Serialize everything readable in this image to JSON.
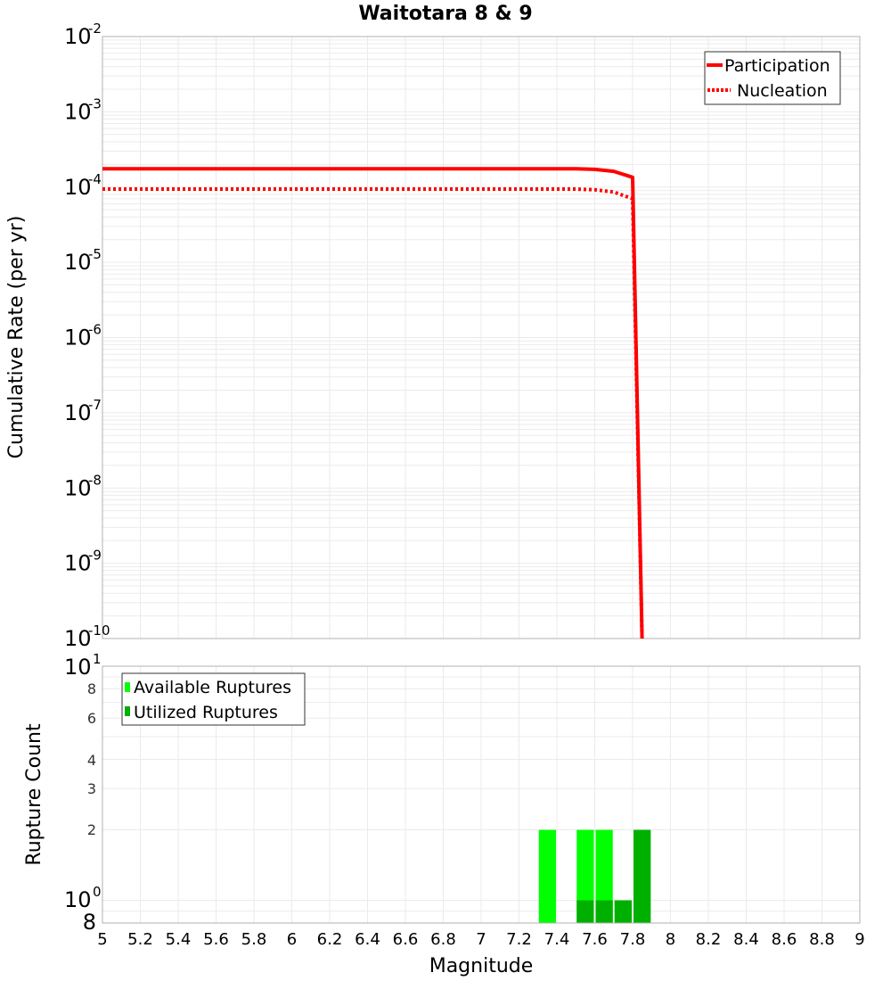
{
  "chart_data": [
    {
      "type": "line",
      "title": "Waitotara 8 & 9",
      "xlabel": "",
      "ylabel": "Cumulative Rate (per yr)",
      "yscale": "log",
      "xlim": [
        5,
        9
      ],
      "ylim": [
        1e-10,
        0.01
      ],
      "grid": true,
      "legend_position": "upper right",
      "y_ticks": [
        "10^-2",
        "10^-3",
        "10^-4",
        "10^-5",
        "10^-6",
        "10^-7",
        "10^-8",
        "10^-9",
        "10^-10"
      ],
      "series": [
        {
          "name": "Participation",
          "style": "solid",
          "color": "#ff0000",
          "x": [
            5.0,
            5.5,
            6.0,
            6.5,
            7.0,
            7.5,
            7.6,
            7.7,
            7.8,
            7.85
          ],
          "values": [
            0.000175,
            0.000175,
            0.000175,
            0.000175,
            0.000175,
            0.000175,
            0.000172,
            0.000162,
            0.000135,
            1e-10
          ]
        },
        {
          "name": "Nucleation",
          "style": "dotted",
          "color": "#ff0000",
          "x": [
            5.0,
            5.5,
            6.0,
            6.5,
            7.0,
            7.5,
            7.6,
            7.7,
            7.8,
            7.85
          ],
          "values": [
            9.4e-05,
            9.4e-05,
            9.4e-05,
            9.4e-05,
            9.4e-05,
            9.4e-05,
            9.2e-05,
            8.6e-05,
            7e-05,
            1e-10
          ]
        }
      ]
    },
    {
      "type": "bar",
      "title": "",
      "xlabel": "Magnitude",
      "ylabel": "Rupture Count",
      "yscale": "log",
      "xlim": [
        5,
        9
      ],
      "ylim": [
        0.8,
        10
      ],
      "grid": true,
      "legend_position": "upper left",
      "x_ticks": [
        "5",
        "5.2",
        "5.4",
        "5.6",
        "5.8",
        "6",
        "6.2",
        "6.4",
        "6.6",
        "6.8",
        "7",
        "7.2",
        "7.4",
        "7.6",
        "7.8",
        "8",
        "8.2",
        "8.4",
        "8.6",
        "8.8",
        "9"
      ],
      "y_ticks": [
        "10^1",
        "8",
        "6",
        "4",
        "3",
        "2",
        "10^0",
        "8"
      ],
      "categories": [
        7.35,
        7.55,
        7.65,
        7.75,
        7.85
      ],
      "series": [
        {
          "name": "Available Ruptures",
          "color": "#00ff00",
          "values": [
            2,
            2,
            2,
            1,
            2
          ]
        },
        {
          "name": "Utilized Ruptures",
          "color": "#00b000",
          "values": [
            0,
            1,
            1,
            1,
            2
          ]
        }
      ]
    }
  ],
  "top": {
    "title": "Waitotara 8 & 9",
    "ylabel": "Cumulative Rate (per yr)",
    "yticks": [
      {
        "base": "10",
        "exp": "-2"
      },
      {
        "base": "10",
        "exp": "-3"
      },
      {
        "base": "10",
        "exp": "-4"
      },
      {
        "base": "10",
        "exp": "-5"
      },
      {
        "base": "10",
        "exp": "-6"
      },
      {
        "base": "10",
        "exp": "-7"
      },
      {
        "base": "10",
        "exp": "-8"
      },
      {
        "base": "10",
        "exp": "-9"
      },
      {
        "base": "10",
        "exp": "-10"
      }
    ],
    "legend": {
      "participation": "Participation",
      "nucleation": "Nucleation"
    }
  },
  "bottom": {
    "ylabel": "Rupture Count",
    "xlabel": "Magnitude",
    "yticks": {
      "ten1_base": "10",
      "ten1_exp": "1",
      "t8": "8",
      "t6": "6",
      "t4": "4",
      "t3": "3",
      "t2": "2",
      "ten0_base": "10",
      "ten0_exp": "0",
      "t8b": "8"
    },
    "xticks": [
      "5",
      "5.2",
      "5.4",
      "5.6",
      "5.8",
      "6",
      "6.2",
      "6.4",
      "6.6",
      "6.8",
      "7",
      "7.2",
      "7.4",
      "7.6",
      "7.8",
      "8",
      "8.2",
      "8.4",
      "8.6",
      "8.8",
      "9"
    ],
    "legend": {
      "available": "Available Ruptures",
      "utilized": "Utilized Ruptures"
    }
  },
  "colors": {
    "line": "#ff0000",
    "available": "#00ff00",
    "utilized": "#00b000",
    "grid": "#ebebeb",
    "frame": "#b0b0b0"
  }
}
